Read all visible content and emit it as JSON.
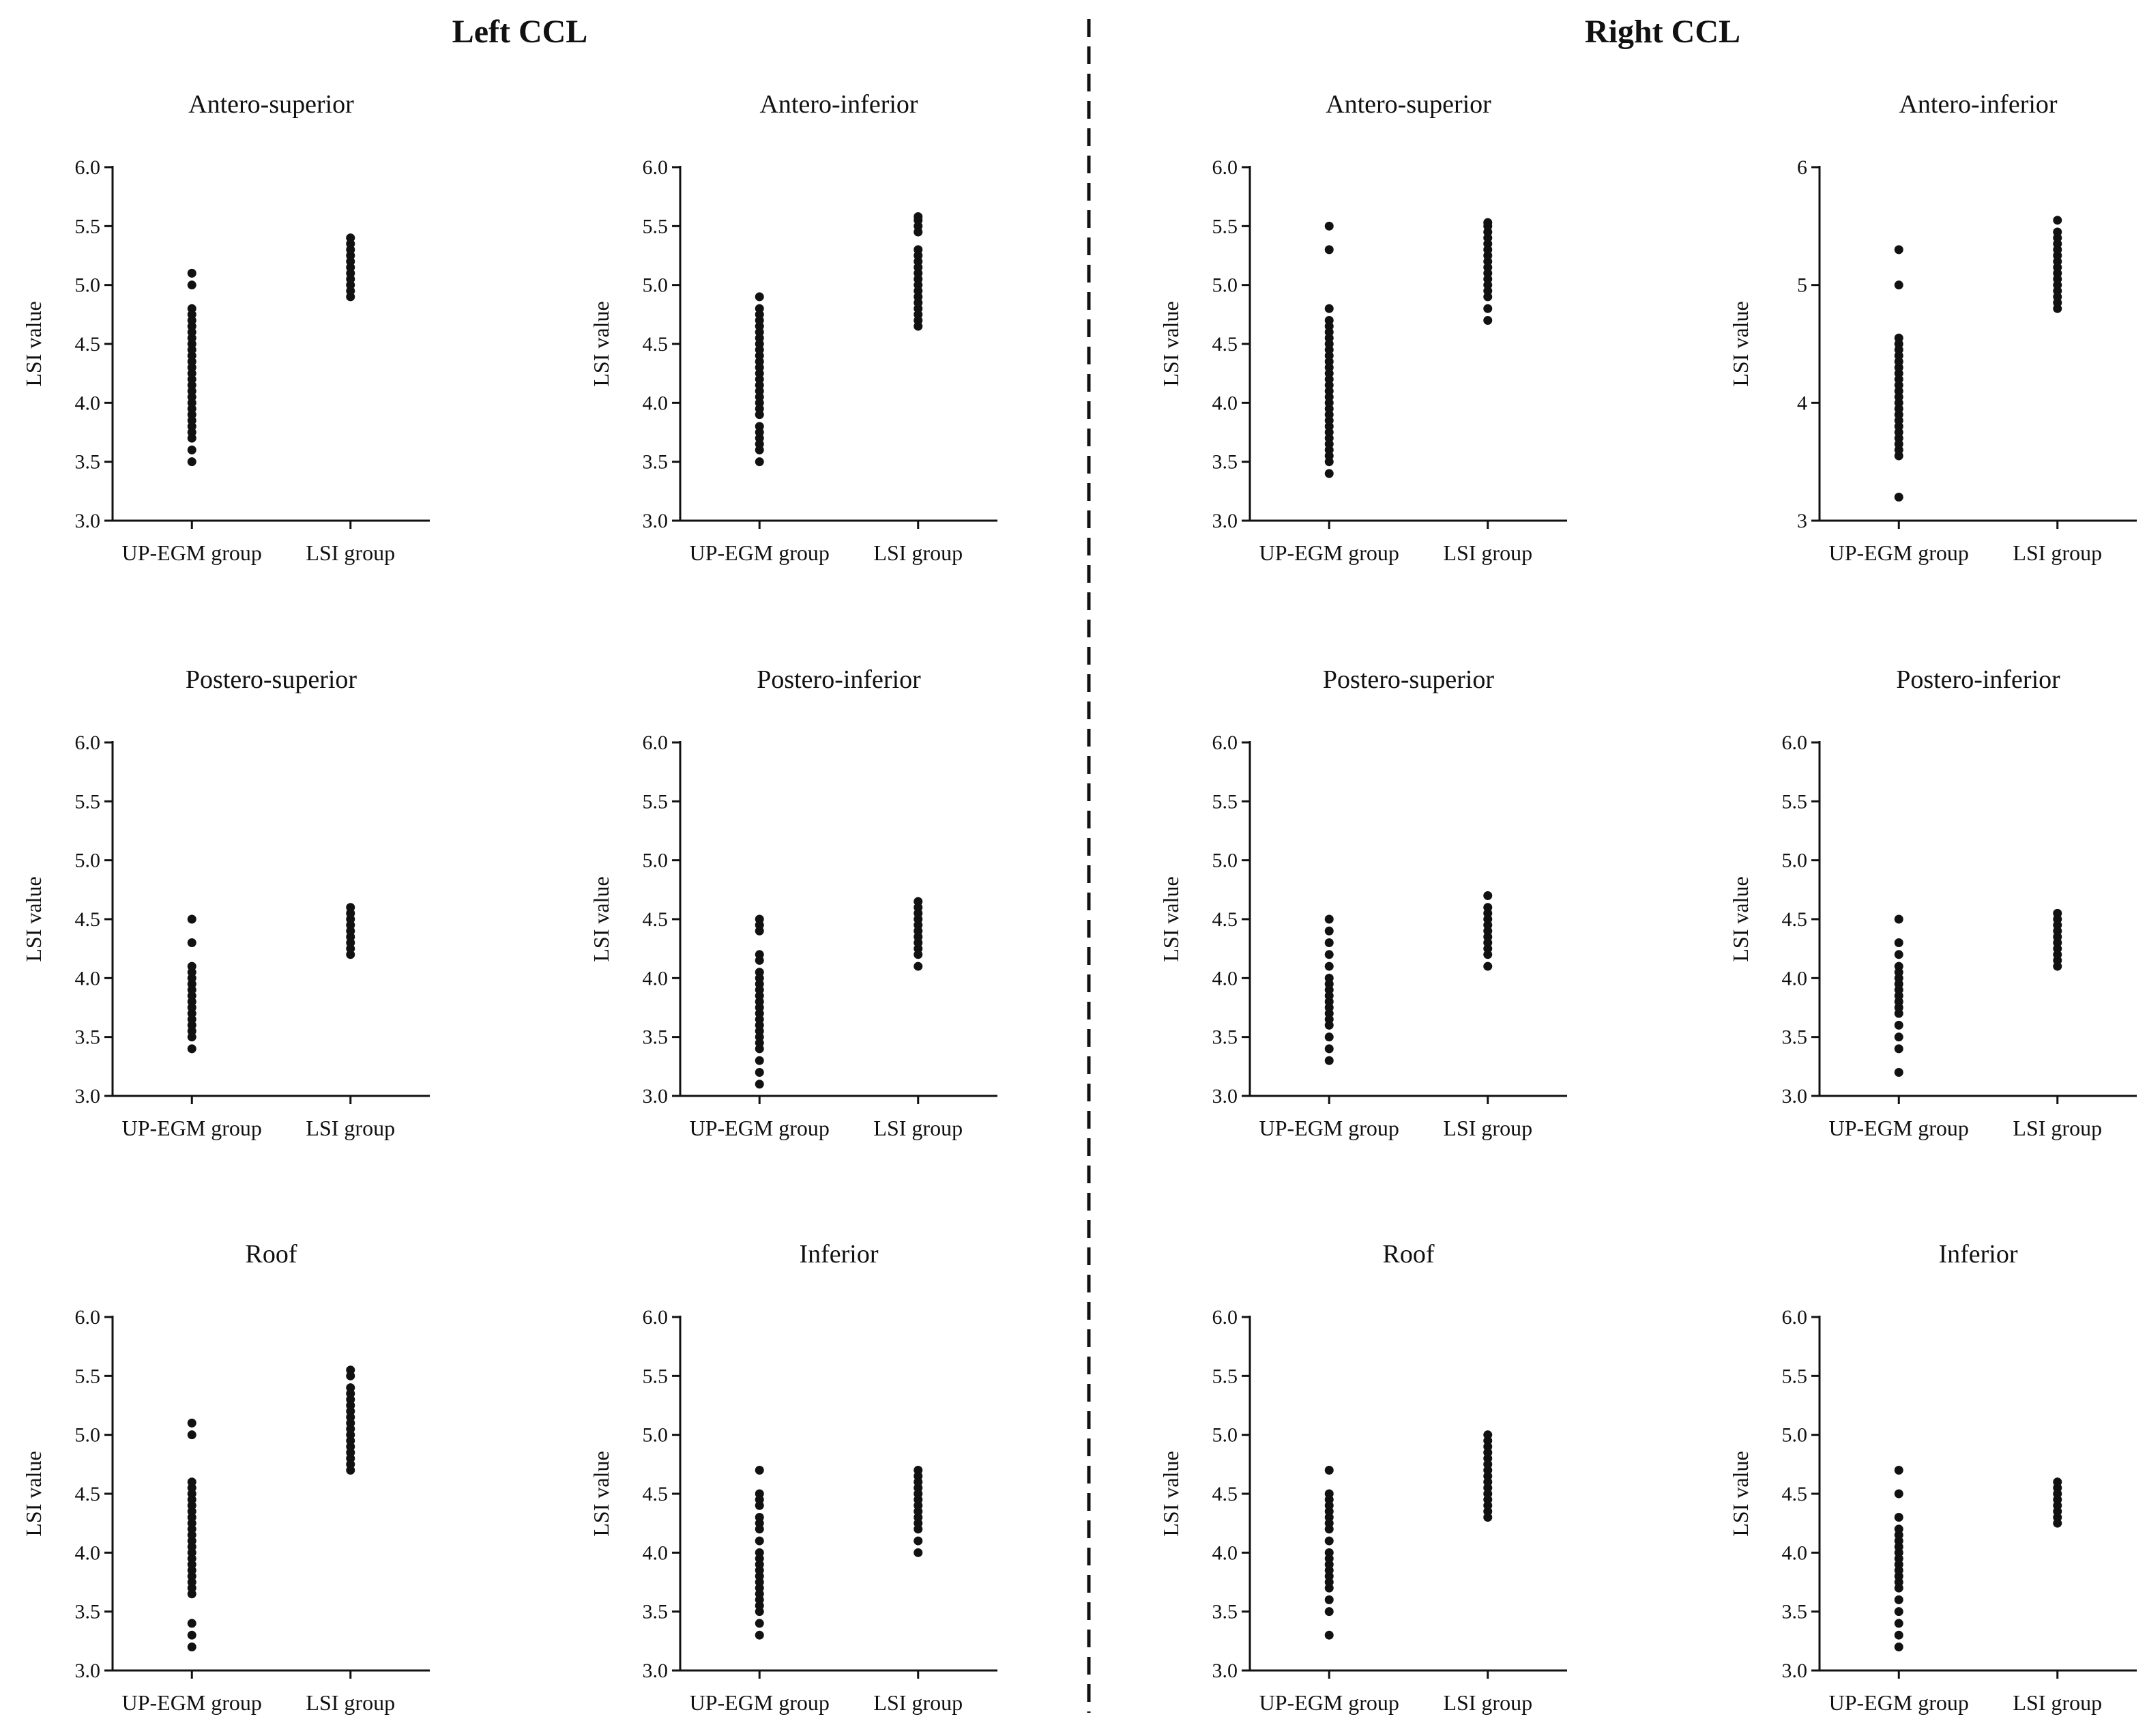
{
  "figure": {
    "sections": [
      {
        "id": "left",
        "title": "Left CCL"
      },
      {
        "id": "right",
        "title": "Right CCL"
      }
    ],
    "colors": {
      "points": "#111111",
      "axes": "#111111",
      "divider": "#111111"
    }
  },
  "chart_data": [
    {
      "type": "scatter",
      "section": "Left CCL",
      "title": "Antero-superior",
      "ylabel": "LSI value",
      "xlabel": "",
      "ylim": [
        3.0,
        6.0
      ],
      "yticks": [
        "3.0",
        "3.5",
        "4.0",
        "4.5",
        "5.0",
        "5.5",
        "6.0"
      ],
      "categories": [
        "UP-EGM group",
        "LSI group"
      ],
      "series": [
        {
          "name": "UP-EGM group",
          "values": [
            3.5,
            3.6,
            3.7,
            3.75,
            3.8,
            3.85,
            3.9,
            3.95,
            4.0,
            4.05,
            4.1,
            4.15,
            4.2,
            4.25,
            4.3,
            4.35,
            4.4,
            4.45,
            4.5,
            4.55,
            4.6,
            4.65,
            4.7,
            4.75,
            4.8,
            5.0,
            5.1
          ]
        },
        {
          "name": "LSI group",
          "values": [
            4.9,
            4.95,
            5.0,
            5.05,
            5.1,
            5.15,
            5.2,
            5.25,
            5.3,
            5.35,
            5.4
          ]
        }
      ]
    },
    {
      "type": "scatter",
      "section": "Left CCL",
      "title": "Antero-inferior",
      "ylabel": "LSI value",
      "xlabel": "",
      "ylim": [
        3.0,
        6.0
      ],
      "yticks": [
        "3.0",
        "3.5",
        "4.0",
        "4.5",
        "5.0",
        "5.5",
        "6.0"
      ],
      "categories": [
        "UP-EGM group",
        "LSI group"
      ],
      "series": [
        {
          "name": "UP-EGM group",
          "values": [
            3.5,
            3.6,
            3.65,
            3.7,
            3.75,
            3.8,
            3.9,
            3.95,
            4.0,
            4.05,
            4.1,
            4.15,
            4.2,
            4.25,
            4.3,
            4.35,
            4.4,
            4.45,
            4.5,
            4.55,
            4.6,
            4.65,
            4.7,
            4.75,
            4.8,
            4.9
          ]
        },
        {
          "name": "LSI group",
          "values": [
            4.65,
            4.7,
            4.75,
            4.8,
            4.85,
            4.9,
            4.95,
            5.0,
            5.05,
            5.1,
            5.15,
            5.2,
            5.25,
            5.3,
            5.45,
            5.5,
            5.55,
            5.58
          ]
        }
      ]
    },
    {
      "type": "scatter",
      "section": "Right CCL",
      "title": "Antero-superior",
      "ylabel": "LSI value",
      "xlabel": "",
      "ylim": [
        3.0,
        6.0
      ],
      "yticks": [
        "3.0",
        "3.5",
        "4.0",
        "4.5",
        "5.0",
        "5.5",
        "6.0"
      ],
      "categories": [
        "UP-EGM group",
        "LSI group"
      ],
      "series": [
        {
          "name": "UP-EGM group",
          "values": [
            3.4,
            3.5,
            3.55,
            3.6,
            3.65,
            3.7,
            3.75,
            3.8,
            3.85,
            3.9,
            3.95,
            4.0,
            4.05,
            4.1,
            4.15,
            4.2,
            4.25,
            4.3,
            4.35,
            4.4,
            4.45,
            4.5,
            4.55,
            4.6,
            4.65,
            4.7,
            4.8,
            5.3,
            5.5
          ]
        },
        {
          "name": "LSI group",
          "values": [
            4.7,
            4.8,
            4.9,
            4.95,
            5.0,
            5.05,
            5.1,
            5.15,
            5.2,
            5.25,
            5.3,
            5.35,
            5.4,
            5.45,
            5.5,
            5.53
          ]
        }
      ]
    },
    {
      "type": "scatter",
      "section": "Right CCL",
      "title": "Antero-inferior",
      "ylabel": "LSI value",
      "xlabel": "",
      "ylim": [
        3,
        6
      ],
      "yticks": [
        "3",
        "4",
        "5",
        "6"
      ],
      "categories": [
        "UP-EGM group",
        "LSI group"
      ],
      "series": [
        {
          "name": "UP-EGM group",
          "values": [
            3.2,
            3.55,
            3.6,
            3.65,
            3.7,
            3.75,
            3.8,
            3.85,
            3.9,
            3.95,
            4.0,
            4.05,
            4.1,
            4.15,
            4.2,
            4.25,
            4.3,
            4.35,
            4.4,
            4.45,
            4.5,
            4.55,
            5.0,
            5.3
          ]
        },
        {
          "name": "LSI group",
          "values": [
            4.8,
            4.85,
            4.9,
            4.95,
            5.0,
            5.05,
            5.1,
            5.15,
            5.2,
            5.25,
            5.3,
            5.35,
            5.4,
            5.45,
            5.55
          ]
        }
      ]
    },
    {
      "type": "scatter",
      "section": "Left CCL",
      "title": "Postero-superior",
      "ylabel": "LSI value",
      "xlabel": "",
      "ylim": [
        3.0,
        6.0
      ],
      "yticks": [
        "3.0",
        "3.5",
        "4.0",
        "4.5",
        "5.0",
        "5.5",
        "6.0"
      ],
      "categories": [
        "UP-EGM group",
        "LSI group"
      ],
      "series": [
        {
          "name": "UP-EGM group",
          "values": [
            3.4,
            3.5,
            3.55,
            3.6,
            3.65,
            3.7,
            3.75,
            3.8,
            3.85,
            3.9,
            3.95,
            4.0,
            4.05,
            4.1,
            4.3,
            4.5
          ]
        },
        {
          "name": "LSI group",
          "values": [
            4.2,
            4.25,
            4.3,
            4.35,
            4.4,
            4.45,
            4.5,
            4.55,
            4.6
          ]
        }
      ]
    },
    {
      "type": "scatter",
      "section": "Left CCL",
      "title": "Postero-inferior",
      "ylabel": "LSI value",
      "xlabel": "",
      "ylim": [
        3.0,
        6.0
      ],
      "yticks": [
        "3.0",
        "3.5",
        "4.0",
        "4.5",
        "5.0",
        "5.5",
        "6.0"
      ],
      "categories": [
        "UP-EGM group",
        "LSI group"
      ],
      "series": [
        {
          "name": "UP-EGM group",
          "values": [
            3.1,
            3.2,
            3.3,
            3.4,
            3.45,
            3.5,
            3.55,
            3.6,
            3.65,
            3.7,
            3.75,
            3.8,
            3.85,
            3.9,
            3.95,
            4.0,
            4.05,
            4.15,
            4.2,
            4.4,
            4.45,
            4.5
          ]
        },
        {
          "name": "LSI group",
          "values": [
            4.1,
            4.2,
            4.25,
            4.3,
            4.35,
            4.4,
            4.45,
            4.5,
            4.55,
            4.6,
            4.65
          ]
        }
      ]
    },
    {
      "type": "scatter",
      "section": "Right CCL",
      "title": "Postero-superior",
      "ylabel": "LSI value",
      "xlabel": "",
      "ylim": [
        3.0,
        6.0
      ],
      "yticks": [
        "3.0",
        "3.5",
        "4.0",
        "4.5",
        "5.0",
        "5.5",
        "6.0"
      ],
      "categories": [
        "UP-EGM group",
        "LSI group"
      ],
      "series": [
        {
          "name": "UP-EGM group",
          "values": [
            3.3,
            3.4,
            3.5,
            3.6,
            3.65,
            3.7,
            3.75,
            3.8,
            3.85,
            3.9,
            3.95,
            4.0,
            4.1,
            4.2,
            4.3,
            4.4,
            4.5
          ]
        },
        {
          "name": "LSI group",
          "values": [
            4.1,
            4.2,
            4.25,
            4.3,
            4.35,
            4.4,
            4.45,
            4.5,
            4.55,
            4.6,
            4.7
          ]
        }
      ]
    },
    {
      "type": "scatter",
      "section": "Right CCL",
      "title": "Postero-inferior",
      "ylabel": "LSI value",
      "xlabel": "",
      "ylim": [
        3.0,
        6.0
      ],
      "yticks": [
        "3.0",
        "3.5",
        "4.0",
        "4.5",
        "5.0",
        "5.5",
        "6.0"
      ],
      "categories": [
        "UP-EGM group",
        "LSI group"
      ],
      "series": [
        {
          "name": "UP-EGM group",
          "values": [
            3.2,
            3.4,
            3.5,
            3.6,
            3.7,
            3.75,
            3.8,
            3.85,
            3.9,
            3.95,
            4.0,
            4.05,
            4.1,
            4.2,
            4.3,
            4.5
          ]
        },
        {
          "name": "LSI group",
          "values": [
            4.1,
            4.15,
            4.2,
            4.25,
            4.3,
            4.35,
            4.4,
            4.45,
            4.5,
            4.55
          ]
        }
      ]
    },
    {
      "type": "scatter",
      "section": "Left CCL",
      "title": "Roof",
      "ylabel": "LSI value",
      "xlabel": "",
      "ylim": [
        3.0,
        6.0
      ],
      "yticks": [
        "3.0",
        "3.5",
        "4.0",
        "4.5",
        "5.0",
        "5.5",
        "6.0"
      ],
      "categories": [
        "UP-EGM group",
        "LSI group"
      ],
      "series": [
        {
          "name": "UP-EGM group",
          "values": [
            3.2,
            3.3,
            3.4,
            3.65,
            3.7,
            3.75,
            3.8,
            3.85,
            3.9,
            3.95,
            4.0,
            4.05,
            4.1,
            4.15,
            4.2,
            4.25,
            4.3,
            4.35,
            4.4,
            4.45,
            4.5,
            4.55,
            4.6,
            5.0,
            5.1
          ]
        },
        {
          "name": "LSI group",
          "values": [
            4.7,
            4.75,
            4.8,
            4.85,
            4.9,
            4.95,
            5.0,
            5.05,
            5.1,
            5.15,
            5.2,
            5.25,
            5.3,
            5.35,
            5.4,
            5.5,
            5.55
          ]
        }
      ]
    },
    {
      "type": "scatter",
      "section": "Left CCL",
      "title": "Inferior",
      "ylabel": "LSI value",
      "xlabel": "",
      "ylim": [
        3.0,
        6.0
      ],
      "yticks": [
        "3.0",
        "3.5",
        "4.0",
        "4.5",
        "5.0",
        "5.5",
        "6.0"
      ],
      "categories": [
        "UP-EGM group",
        "LSI group"
      ],
      "series": [
        {
          "name": "UP-EGM group",
          "values": [
            3.3,
            3.4,
            3.5,
            3.55,
            3.6,
            3.65,
            3.7,
            3.75,
            3.8,
            3.85,
            3.9,
            3.95,
            4.0,
            4.1,
            4.2,
            4.25,
            4.3,
            4.4,
            4.45,
            4.5,
            4.7
          ]
        },
        {
          "name": "LSI group",
          "values": [
            4.0,
            4.1,
            4.2,
            4.25,
            4.3,
            4.35,
            4.4,
            4.45,
            4.5,
            4.55,
            4.6,
            4.65,
            4.7
          ]
        }
      ]
    },
    {
      "type": "scatter",
      "section": "Right CCL",
      "title": "Roof",
      "ylabel": "LSI value",
      "xlabel": "",
      "ylim": [
        3.0,
        6.0
      ],
      "yticks": [
        "3.0",
        "3.5",
        "4.0",
        "4.5",
        "5.0",
        "5.5",
        "6.0"
      ],
      "categories": [
        "UP-EGM group",
        "LSI group"
      ],
      "series": [
        {
          "name": "UP-EGM group",
          "values": [
            3.3,
            3.5,
            3.6,
            3.7,
            3.75,
            3.8,
            3.85,
            3.9,
            3.95,
            4.0,
            4.1,
            4.2,
            4.25,
            4.3,
            4.35,
            4.4,
            4.45,
            4.5,
            4.7
          ]
        },
        {
          "name": "LSI group",
          "values": [
            4.3,
            4.35,
            4.4,
            4.45,
            4.5,
            4.55,
            4.6,
            4.65,
            4.7,
            4.75,
            4.8,
            4.85,
            4.9,
            4.95,
            5.0
          ]
        }
      ]
    },
    {
      "type": "scatter",
      "section": "Right CCL",
      "title": "Inferior",
      "ylabel": "LSI value",
      "xlabel": "",
      "ylim": [
        3.0,
        6.0
      ],
      "yticks": [
        "3.0",
        "3.5",
        "4.0",
        "4.5",
        "5.0",
        "5.5",
        "6.0"
      ],
      "categories": [
        "UP-EGM group",
        "LSI group"
      ],
      "series": [
        {
          "name": "UP-EGM group",
          "values": [
            3.2,
            3.3,
            3.4,
            3.5,
            3.6,
            3.7,
            3.75,
            3.8,
            3.85,
            3.9,
            3.95,
            4.0,
            4.05,
            4.1,
            4.15,
            4.2,
            4.3,
            4.5,
            4.7
          ]
        },
        {
          "name": "LSI group",
          "values": [
            4.25,
            4.3,
            4.35,
            4.4,
            4.45,
            4.5,
            4.55,
            4.6
          ]
        }
      ]
    }
  ]
}
